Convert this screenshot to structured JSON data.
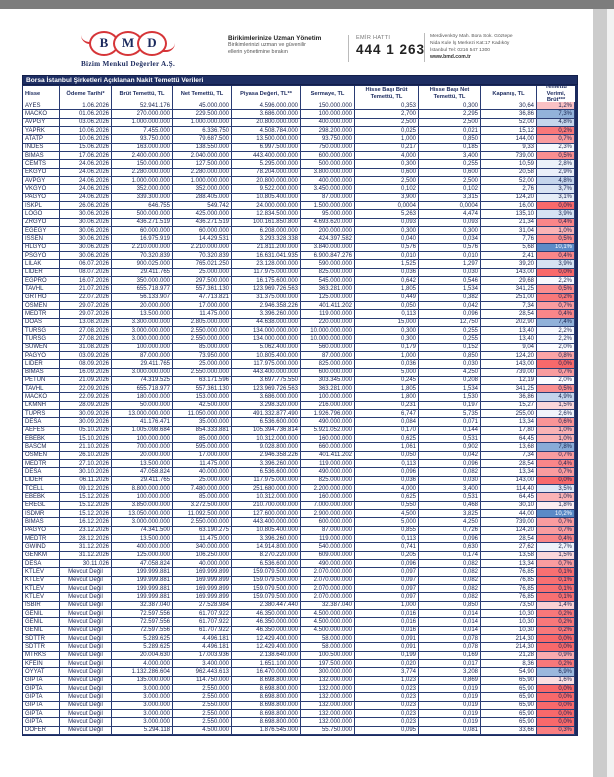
{
  "page": {
    "background": "#ffffff",
    "navy": "#1b2a5e",
    "accent_red": "#d63538"
  },
  "header": {
    "logo_letters": [
      "B",
      "M",
      "D"
    ],
    "company_name": "Bizim Menkul Değerler A.Ş.",
    "slogan_title": "Birikimlerinize Uzman Yönetim",
    "slogan_line1": "Birikimlerinizi uzman ve güvenilir",
    "slogan_line2": "ellerin yönetimine bırakın",
    "order_line_label": "EMİR HATTI",
    "order_line_number": "444 1 263",
    "address_line1": "Merdivenköy Mah. Bora Sok. Göztepe",
    "address_line2": "Nida Kule İş Merkezi Kat:17 Kadıköy",
    "address_line3": "İstanbul   Tel: 0216 547 1300",
    "website": "www.bmd.com.tr"
  },
  "table": {
    "title": "Borsa İstanbul Şirketleri Açıklanan Nakit Temettü Verileri",
    "columns": [
      "Hisse",
      "Ödeme Tarihi*",
      "Brüt Temettü, TL",
      "Net Temettü, TL",
      "Piyasa Değeri, TL**",
      "Sermaye, TL",
      "Hisse Başı Brüt Temettü, TL",
      "Hisse Başı Net Temettü, TL",
      "Kapanış, TL",
      "Temettü Verimi, Brüt***"
    ],
    "no_date_text": "Mevcut Değil",
    "yield_scale": {
      "low_color": "#F8696B",
      "mid_color": "#FCFCFF",
      "high_color": "#5A8AC6",
      "mid_value": 2.0,
      "max_value": 10.2
    },
    "rows": [
      [
        "AYES",
        "1.06.2026",
        "52.941.176",
        "45.000.000",
        "4.596.000.000",
        "150.000.000",
        "0,353",
        "0,300",
        "30,64",
        "1,2%"
      ],
      [
        "MACKO",
        "01.06.2026",
        "270.000.000",
        "229.500.000",
        "3.686.000.000",
        "100.000.000",
        "2,700",
        "2,295",
        "36,86",
        "7,3%"
      ],
      [
        "AVPGY",
        "03.06.2026",
        "1.000.000.000",
        "1.000.000.000",
        "20.800.000.000",
        "400.000.000",
        "2,500",
        "2,500",
        "52,00",
        "4,8%"
      ],
      [
        "YAPRK",
        "10.06.2026",
        "7.455.000",
        "6.336.750",
        "4.508.784.000",
        "298.200.000",
        "0,025",
        "0,021",
        "15,12",
        "0,2%"
      ],
      [
        "ATATP",
        "10.06.2026",
        "93.750.000",
        "79.687.500",
        "13.500.000.000",
        "93.750.000",
        "1,000",
        "0,850",
        "144,00",
        "0,7%"
      ],
      [
        "INDES",
        "15.06.2026",
        "163.000.000",
        "138.550.000",
        "6.997.500.000",
        "750.000.000",
        "0,217",
        "0,185",
        "9,33",
        "2,3%"
      ],
      [
        "BIMAS",
        "17.06.2026",
        "2.400.000.000",
        "2.040.000.000",
        "443.400.000.000",
        "600.000.000",
        "4,000",
        "3,400",
        "739,00",
        "0,5%"
      ],
      [
        "CEMTS",
        "24.06.2026",
        "150.000.000",
        "127.500.000",
        "5.295.000.000",
        "500.000.000",
        "0,300",
        "0,255",
        "10,59",
        "2,8%"
      ],
      [
        "EKGYO",
        "24.06.2026",
        "2.280.000.000",
        "2.280.000.000",
        "78.204.000.000",
        "3.800.000.000",
        "0,600",
        "0,600",
        "20,58",
        "2,9%"
      ],
      [
        "AVPGY",
        "24.06.2026",
        "1.000.000.000",
        "1.000.000.000",
        "20.800.000.000",
        "400.000.000",
        "2,500",
        "2,500",
        "52,00",
        "4,8%"
      ],
      [
        "VKGYO",
        "24.06.2026",
        "352.000.000",
        "352.000.000",
        "9.522.000.000",
        "3.450.000.000",
        "0,102",
        "0,102",
        "2,76",
        "3,7%"
      ],
      [
        "PAGYO",
        "24.06.2026",
        "339.300.000",
        "288.405.000",
        "10.805.400.000",
        "87.000.000",
        "3,900",
        "3,315",
        "124,20",
        "3,1%"
      ],
      [
        "ISKPL",
        "26.06.2026",
        "646.755",
        "549.742",
        "24.000.000.000",
        "1.500.000.000",
        "0,0004",
        "0,0004",
        "16,00",
        "0,0%"
      ],
      [
        "LOGO",
        "30.06.2026",
        "500.000.000",
        "425.000.000",
        "12.834.500.000",
        "95.000.000",
        "5,263",
        "4,474",
        "135,10",
        "3,9%"
      ],
      [
        "ZRGYO",
        "30.06.2026",
        "436.271.519",
        "436.271.519",
        "100.161.850.800",
        "4.693.620.000",
        "0,093",
        "0,093",
        "21,34",
        "0,4%"
      ],
      [
        "EGEGY",
        "30.06.2026",
        "60.000.000",
        "60.000.000",
        "6.208.000.000",
        "200.000.000",
        "0,300",
        "0,300",
        "31,04",
        "1,0%"
      ],
      [
        "ISSEN",
        "30.06.2026",
        "16.975.919",
        "14.429.531",
        "3.293.328.338",
        "424.397.582",
        "0,040",
        "0,034",
        "7,76",
        "0,5%"
      ],
      [
        "HLGYO",
        "30.06.2026",
        "2.210.000.000",
        "2.210.000.000",
        "21.811.200.000",
        "3.840.000.000",
        "0,576",
        "0,576",
        "5,68",
        "10,1%"
      ],
      [
        "PSGYO",
        "30.06.2026",
        "70.320.839",
        "70.320.839",
        "16.631.041.935",
        "6.900.847.276",
        "0,010",
        "0,010",
        "2,41",
        "0,4%"
      ],
      [
        "LILAK",
        "06.07.2026",
        "900.025.000",
        "765.021.250",
        "23.128.000.000",
        "590.000.000",
        "1,525",
        "1,297",
        "39,20",
        "3,9%"
      ],
      [
        "LIDER",
        "08.07.2026",
        "29.411.765",
        "25.000.000",
        "117.975.000.000",
        "825.000.000",
        "0,036",
        "0,030",
        "143,00",
        "0,0%"
      ],
      [
        "EGPRO",
        "16.07.2026",
        "350.000.000",
        "297.500.000",
        "16.175.600.000",
        "545.000.000",
        "0,642",
        "0,546",
        "29,68",
        "2,2%"
      ],
      [
        "TAVHL",
        "21.07.2026",
        "655.718.977",
        "557.361.130",
        "123.969.726.563",
        "363.281.000",
        "1,805",
        "1,534",
        "341,25",
        "0,5%"
      ],
      [
        "GRTHO",
        "22.07.2026",
        "56.133.907",
        "47.713.821",
        "31.375.000.000",
        "125.000.000",
        "0,449",
        "0,382",
        "251,00",
        "0,2%"
      ],
      [
        "OSMEN",
        "29.07.2026",
        "20.000.000",
        "17.000.000",
        "2.946.358.226",
        "401.411.202",
        "0,050",
        "0,042",
        "7,34",
        "0,7%"
      ],
      [
        "MEDTR",
        "29.07.2026",
        "13.500.000",
        "11.475.000",
        "3.396.260.000",
        "119.000.000",
        "0,113",
        "0,096",
        "28,54",
        "0,4%"
      ],
      [
        "DOAS",
        "13.08.2026",
        "3.300.000.000",
        "2.805.000.000",
        "44.638.000.000",
        "220.000.000",
        "15,000",
        "12,750",
        "202,90",
        "7,4%"
      ],
      [
        "TURSG",
        "27.08.2026",
        "3.000.000.000",
        "2.550.000.000",
        "134.000.000.000",
        "10.000.000.000",
        "0,300",
        "0,255",
        "13,40",
        "2,2%"
      ],
      [
        "TURSG",
        "27.08.2026",
        "3.000.000.000",
        "2.550.000.000",
        "134.000.000.000",
        "10.000.000.000",
        "0,300",
        "0,255",
        "13,40",
        "2,2%"
      ],
      [
        "SUWEN",
        "31.08.2026",
        "100.000.000",
        "85.000.000",
        "5.062.400.000",
        "560.000.000",
        "0,179",
        "0,152",
        "9,04",
        "2,0%"
      ],
      [
        "PAGYO",
        "03.09.2026",
        "87.000.000",
        "73.950.000",
        "10.805.400.000",
        "87.000.000",
        "1,000",
        "0,850",
        "124,20",
        "0,8%"
      ],
      [
        "LIDER",
        "08.09.2026",
        "29.411.765",
        "25.000.000",
        "117.975.000.000",
        "825.000.000",
        "0,036",
        "0,030",
        "143,00",
        "0,0%"
      ],
      [
        "BIMAS",
        "16.09.2026",
        "3.000.000.000",
        "2.550.000.000",
        "443.400.000.000",
        "600.000.000",
        "5,000",
        "4,250",
        "739,00",
        "0,7%"
      ],
      [
        "PETUN",
        "21.09.2026",
        "74.319.525",
        "63.171.596",
        "3.697.775.550",
        "303.345.000",
        "0,245",
        "0,208",
        "12,19",
        "2,0%"
      ],
      [
        "TAVHL",
        "22.09.2026",
        "655.718.977",
        "557.361.130",
        "123.969.726.563",
        "363.281.000",
        "1,805",
        "1,534",
        "341,25",
        "0,5%"
      ],
      [
        "MACKO",
        "22.09.2026",
        "180.000.000",
        "153.000.000",
        "3.686.000.000",
        "100.000.000",
        "1,800",
        "1,530",
        "36,86",
        "4,9%"
      ],
      [
        "LKMNH",
        "28.09.2026",
        "50.000.000",
        "42.500.000",
        "3.298.320.000",
        "216.000.000",
        "0,231",
        "0,197",
        "15,27",
        "1,5%"
      ],
      [
        "TUPRS",
        "30.09.2026",
        "13.000.000.000",
        "11.050.000.000",
        "491.332.877.490",
        "1.926.796.000",
        "6,747",
        "5,735",
        "255,00",
        "2,6%"
      ],
      [
        "DESA",
        "30.09.2026",
        "41.176.471",
        "35.000.000",
        "6.536.600.000",
        "490.000.000",
        "0,084",
        "0,071",
        "13,34",
        "0,6%"
      ],
      [
        "AEFES",
        "05.10.2026",
        "1.005.098.684",
        "854.333.881",
        "105.394.736.814",
        "5.921.052.000",
        "0,170",
        "0,144",
        "17,80",
        "1,0%"
      ],
      [
        "EBEBK",
        "15.10.2026",
        "100.000.000",
        "85.000.000",
        "10.312.000.000",
        "160.000.000",
        "0,625",
        "0,531",
        "64,45",
        "1,0%"
      ],
      [
        "BASCM",
        "21.10.2026",
        "700.000.000",
        "595.000.000",
        "9.028.800.000",
        "660.000.000",
        "1,061",
        "0,902",
        "13,68",
        "7,8%"
      ],
      [
        "OSMEN",
        "26.10.2026",
        "20.000.000",
        "17.000.000",
        "2.946.358.226",
        "401.411.202",
        "0,050",
        "0,042",
        "7,34",
        "0,7%"
      ],
      [
        "MEDTR",
        "27.10.2026",
        "13.500.000",
        "11.475.000",
        "3.396.260.000",
        "119.000.000",
        "0,113",
        "0,096",
        "28,54",
        "0,4%"
      ],
      [
        "DESA",
        "30.10.2026",
        "47.058.824",
        "40.000.000",
        "6.536.600.000",
        "490.000.000",
        "0,096",
        "0,082",
        "13,34",
        "0,7%"
      ],
      [
        "LIDER",
        "06.11.2026",
        "29.411.765",
        "25.000.000",
        "117.975.000.000",
        "825.000.000",
        "0,036",
        "0,030",
        "143,00",
        "0,0%"
      ],
      [
        "TCELL",
        "09.12.2026",
        "8.800.000.000",
        "7.480.000.000",
        "251.680.000.000",
        "2.200.000.000",
        "4,000",
        "3,400",
        "114,40",
        "3,5%"
      ],
      [
        "EBEBK",
        "15.12.2026",
        "100.000.000",
        "85.000.000",
        "10.312.000.000",
        "160.000.000",
        "0,625",
        "0,531",
        "64,45",
        "1,0%"
      ],
      [
        "EREGL",
        "15.12.2026",
        "3.850.000.000",
        "3.272.500.000",
        "210.700.000.000",
        "7.000.000.000",
        "0,550",
        "0,468",
        "30,10",
        "1,8%"
      ],
      [
        "ISDMR",
        "15.12.2026",
        "13.050.000.000",
        "11.092.500.000",
        "127.600.000.000",
        "2.900.000.000",
        "4,500",
        "3,825",
        "44,00",
        "10,2%"
      ],
      [
        "BIMAS",
        "16.12.2026",
        "3.000.000.000",
        "2.550.000.000",
        "443.400.000.000",
        "600.000.000",
        "5,000",
        "4,250",
        "739,00",
        "0,7%"
      ],
      [
        "PAGYO",
        "23.12.2026",
        "74.341.500",
        "63.190.275",
        "10.805.400.000",
        "87.000.000",
        "0,855",
        "0,726",
        "124,20",
        "0,7%"
      ],
      [
        "MEDTR",
        "28.12.2026",
        "13.500.000",
        "11.475.000",
        "3.396.260.000",
        "119.000.000",
        "0,113",
        "0,096",
        "28,54",
        "0,4%"
      ],
      [
        "GWIND",
        "31.12.2026",
        "400.000.000",
        "340.000.000",
        "14.914.800.000",
        "540.000.000",
        "0,741",
        "0,630",
        "27,62",
        "2,7%"
      ],
      [
        "GENKM",
        "31.12.2026",
        "125.000.000",
        "106.250.000",
        "8.270.220.000",
        "609.000.000",
        "0,205",
        "0,174",
        "13,58",
        "1,5%"
      ],
      [
        "DESA",
        "30.11.026",
        "47.058.824",
        "40.000.000",
        "6.536.600.000",
        "490.000.000",
        "0,096",
        "0,082",
        "13,34",
        "0,7%"
      ],
      [
        "KTLEV",
        "Mevcut Değil",
        "199.999.881",
        "169.999.899",
        "159.079.500.000",
        "2.070.000.000",
        "0,097",
        "0,082",
        "76,85",
        "0,1%"
      ],
      [
        "KTLEV",
        "Mevcut Değil",
        "199.999.881",
        "169.999.899",
        "159.079.500.000",
        "2.070.000.000",
        "0,097",
        "0,082",
        "76,85",
        "0,1%"
      ],
      [
        "KTLEV",
        "Mevcut Değil",
        "199.999.881",
        "169.999.899",
        "159.079.500.000",
        "2.070.000.000",
        "0,097",
        "0,082",
        "76,85",
        "0,1%"
      ],
      [
        "KTLEV",
        "Mevcut Değil",
        "199.999.881",
        "169.999.899",
        "159.079.500.000",
        "2.070.000.000",
        "0,097",
        "0,082",
        "76,85",
        "0,1%"
      ],
      [
        "ISBIR",
        "Mevcut Değil",
        "32.387.040",
        "27.528.984",
        "2.380.447.440",
        "32.387.040",
        "1,000",
        "0,850",
        "73,50",
        "1,4%"
      ],
      [
        "GENIL",
        "Mevcut Değil",
        "72.597.556",
        "61.707.922",
        "46.350.000.000",
        "4.500.000.000",
        "0,016",
        "0,014",
        "10,30",
        "0,2%"
      ],
      [
        "GENIL",
        "Mevcut Değil",
        "72.597.556",
        "61.707.922",
        "46.350.000.000",
        "4.500.000.000",
        "0,016",
        "0,014",
        "10,30",
        "0,2%"
      ],
      [
        "GENIL",
        "Mevcut Değil",
        "72.597.556",
        "61.707.922",
        "46.350.000.000",
        "4.500.000.000",
        "0,016",
        "0,014",
        "10,30",
        "0,2%"
      ],
      [
        "SDTTR",
        "Mevcut Değil",
        "5.289.625",
        "4.496.181",
        "12.429.400.000",
        "58.000.000",
        "0,091",
        "0,078",
        "214,30",
        "0,0%"
      ],
      [
        "SDTTR",
        "Mevcut Değil",
        "5.289.625",
        "4.496.181",
        "12.429.400.000",
        "58.000.000",
        "0,091",
        "0,078",
        "214,30",
        "0,0%"
      ],
      [
        "MTRKS",
        "Mevcut Değil",
        "20.004.630",
        "17.003.936",
        "2.138.640.000",
        "100.500.000",
        "0,199",
        "0,169",
        "21,28",
        "0,9%"
      ],
      [
        "KFEIN",
        "Mevcut Değil",
        "4.000.000",
        "3.400.000",
        "1.651.100.000",
        "197.500.000",
        "0,020",
        "0,017",
        "8,36",
        "0,2%"
      ],
      [
        "OYYAT",
        "Mevcut Değil",
        "1.132.286.604",
        "962.443.613",
        "16.470.000.000",
        "300.000.000",
        "3,774",
        "3,208",
        "54,90",
        "6,9%"
      ],
      [
        "GIPTA",
        "Mevcut Değil",
        "135.000.000",
        "114.750.000",
        "8.698.800.000",
        "132.000.000",
        "1,023",
        "0,869",
        "65,90",
        "1,6%"
      ],
      [
        "GIPTA",
        "Mevcut Değil",
        "3.000.000",
        "2.550.000",
        "8.698.800.000",
        "132.000.000",
        "0,023",
        "0,019",
        "65,90",
        "0,0%"
      ],
      [
        "GIPTA",
        "Mevcut Değil",
        "3.000.000",
        "2.550.000",
        "8.698.800.000",
        "132.000.000",
        "0,023",
        "0,019",
        "65,90",
        "0,0%"
      ],
      [
        "GIPTA",
        "Mevcut Değil",
        "3.000.000",
        "2.550.000",
        "8.698.800.000",
        "132.000.000",
        "0,023",
        "0,019",
        "65,90",
        "0,0%"
      ],
      [
        "GIPTA",
        "Mevcut Değil",
        "3.000.000",
        "2.550.000",
        "8.698.800.000",
        "132.000.000",
        "0,023",
        "0,019",
        "65,90",
        "0,0%"
      ],
      [
        "GIPTA",
        "Mevcut Değil",
        "3.000.000",
        "2.550.000",
        "8.698.800.000",
        "132.000.000",
        "0,023",
        "0,019",
        "65,90",
        "0,0%"
      ],
      [
        "DOFER",
        "Mevcut Değil",
        "5.294.118",
        "4.500.000",
        "1.876.545.000",
        "55.750.000",
        "0,095",
        "0,081",
        "33,66",
        "0,3%"
      ]
    ]
  }
}
